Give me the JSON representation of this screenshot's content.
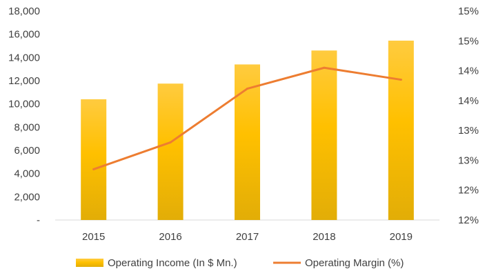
{
  "chart_data": {
    "type": "bar",
    "categories": [
      "2015",
      "2016",
      "2017",
      "2018",
      "2019"
    ],
    "series": [
      {
        "name": "Operating Income (In $ Mn.)",
        "type": "bar",
        "axis": "left",
        "values": [
          10400,
          11750,
          13400,
          14600,
          15450
        ],
        "color": "#FFC000"
      },
      {
        "name": "Operating Margin (%)",
        "type": "line",
        "axis": "right",
        "values": [
          12.85,
          13.3,
          14.2,
          14.55,
          14.35
        ],
        "color": "#ED7D31"
      }
    ],
    "y_left": {
      "min": 0,
      "max": 18000,
      "ticks": [
        0,
        2000,
        4000,
        6000,
        8000,
        10000,
        12000,
        14000,
        16000,
        18000
      ],
      "tick_labels": [
        "-",
        "2,000",
        "4,000",
        "6,000",
        "8,000",
        "10,000",
        "12,000",
        "14,000",
        "16,000",
        "18,000"
      ]
    },
    "y_right": {
      "min": 12,
      "max": 15.5,
      "ticks": [
        12,
        12.5,
        13,
        13.5,
        14,
        14.5,
        15,
        15.5
      ],
      "tick_labels": [
        "12%",
        "12%",
        "13%",
        "13%",
        "14%",
        "14%",
        "15%",
        "15%"
      ]
    },
    "grid": false,
    "legend_position": "bottom"
  }
}
